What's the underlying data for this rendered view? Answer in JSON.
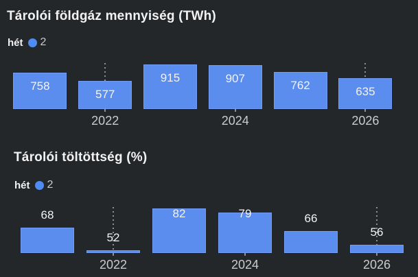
{
  "colors": {
    "background": "#24272a",
    "bar": "#5b8def",
    "legend_dot": "#4e8cf3",
    "title": "#f2f2f2",
    "axis_label": "#cbcbcb",
    "value_label": "#f3f3f3",
    "guide_line": "#8b9198"
  },
  "charts": [
    {
      "title": "Tárolói földgáz mennyiség (TWh)",
      "legend": {
        "key": "hét",
        "series": "2"
      },
      "chart_data": {
        "type": "bar",
        "categories": [
          "",
          "2022",
          "",
          "2024",
          "",
          "2026"
        ],
        "values": [
          758,
          577,
          915,
          907,
          762,
          635
        ],
        "title": "Tárolói földgáz mennyiség (TWh)",
        "xlabel": "",
        "ylabel": "TWh",
        "ylim": [
          0,
          950
        ],
        "grid": false,
        "legend_position": "top-left",
        "value_labels_shown": true,
        "guide_line_columns": [
          1,
          5
        ],
        "tick_columns": [
          1,
          3,
          5
        ]
      }
    },
    {
      "title": "Tárolói töltöttség (%)",
      "legend": {
        "key": "hét",
        "series": "2"
      },
      "chart_data": {
        "type": "bar",
        "categories": [
          "",
          "2022",
          "",
          "2024",
          "",
          "2026"
        ],
        "values": [
          68,
          52,
          82,
          79,
          66,
          56
        ],
        "title": "Tárolói töltöttség (%)",
        "xlabel": "",
        "ylabel": "%",
        "ylim": [
          50,
          83
        ],
        "grid": false,
        "legend_position": "top-left",
        "value_labels_shown": true,
        "guide_line_columns": [
          1,
          5
        ],
        "tick_columns": [
          1,
          3,
          5
        ]
      }
    }
  ]
}
